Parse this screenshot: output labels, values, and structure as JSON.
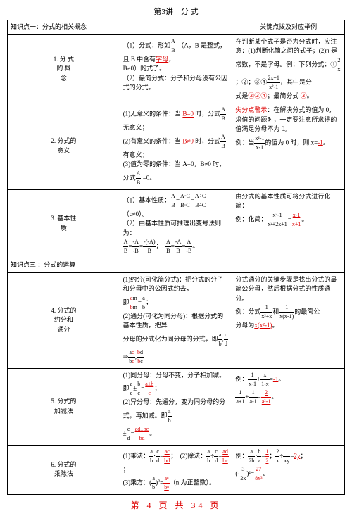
{
  "title": "第3讲　分 式",
  "header_col2": "关键点拨及对应举例",
  "section1": {
    "title": "知识点一：分式的相关概念",
    "row1": {
      "label": "1. 分 式\n的 概\n念",
      "c2a": "（1）分式：形如",
      "c2b": "（A，B 是整式，且 B 中含有",
      "c2c": "字母",
      "c2d": "，",
      "c2e": "B≠0）的式子。",
      "c2f": "（2）最简分式：分子和分母没有公因式的分式。",
      "c3a": "在判断某个式子是否为分式时，应注意：(1)判断化简之间的式子；(2)π 是常数，不是字母。例：下列分式：①",
      "c3b": "；②",
      "c3c": "；③",
      "c3d": "④",
      "c3e": "，其中是分",
      "c3f": "式是",
      "c3g": "②③④",
      "c3h": "；最简分式",
      "c3i": "③",
      "c3j": "。"
    },
    "row2": {
      "label": "2. 分式的\n意义",
      "c2a": "(1)无意义的条件：当",
      "c2b": "B=0",
      "c2c": "时，分式",
      "c2d": "无意义；",
      "c2e": "(2)有意义的条件：当",
      "c2f": "B≠0",
      "c2g": "时，分式",
      "c2h": "有意义；",
      "c2i": "(3)值为零的条件：当 A=0，B≠0 时，分式",
      "c2j": "=0。",
      "c3a": "失分点警示",
      "c3b": "：在解决分式的值为 0，求值的问题时，一定要注意所求得的值满足分母不为 0。",
      "c3c": "例：当",
      "c3d": "的值为 0 时，则 x=",
      "c3e": "-1",
      "c3f": "。"
    },
    "row3": {
      "label": "3. 基本性\n质",
      "c2a": "（1）基本性质：",
      "c2b": "（c≠0）。",
      "c2c": "（2）由基本性质可推理出变号法则为：",
      "c3a": "由分式的基本性质可将分式进行化简：",
      "c3b": "例：化简："
    }
  },
  "section3": {
    "title": "知识点三 ：分式的运算",
    "row4": {
      "label": "4. 分式的\n约分和\n通分",
      "c2a": "(1)约分(可化简分式)：把分式的分子和分母中的公因式约去，",
      "c2b": "即",
      "c2c": "；",
      "c2d": "(2)通分(可化为同分母)：根据分式的基本性质，把异",
      "c2e": "分母的分式化为同分母的分式，即",
      "c3a": "分式通分的关键步骤是找出分式的最",
      "c3b": "简公分母，然后根据分式的性质通分。",
      "c3c": "例：分式",
      "c3d": "和",
      "c3e": "的最简公",
      "c3f": "分母为",
      "c3g": "x(x²-1)",
      "c3h": "。"
    },
    "row5": {
      "label": "5. 分式的\n加减法",
      "c2a": "(1)同分母：分母不变，分子相加减。即",
      "c2b": "；",
      "c2c": "(2)异分母：先通分，变为同分母的分式，再加减。即",
      "c3a": "例：",
      "c3b": "=",
      "c3c": "-1",
      "c3d": "。"
    },
    "row6": {
      "label": "6. 分式的\n乘除法",
      "c2a": "(1)乘法：",
      "c2b": "；　(2)除法：",
      "c2c": "；",
      "c2d": "(3)乘方：",
      "c2e": "（n 为正整数）。",
      "c3a": "例：",
      "c3b": "=",
      "c3c": "2y",
      "c3d": "；"
    }
  },
  "footer": "第 4 页 共 34 页"
}
